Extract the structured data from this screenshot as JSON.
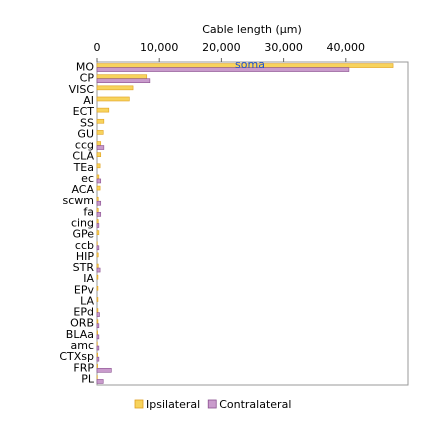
{
  "chart_data": {
    "type": "bar",
    "orientation": "horizontal",
    "title": "Cable length (µm)",
    "categories": [
      "MO",
      "CP",
      "VISC",
      "AI",
      "ECT",
      "SS",
      "GU",
      "ccg",
      "CLA",
      "TEa",
      "ec",
      "ACA",
      "scwm",
      "fa",
      "cing",
      "GPe",
      "ccb",
      "HIP",
      "STR",
      "IA",
      "EPv",
      "LA",
      "EPd",
      "ORB",
      "BLAa",
      "amc",
      "CTXsp",
      "FRP",
      "PL"
    ],
    "series": [
      {
        "name": "Ipsilateral",
        "color": "#f7d35c",
        "values": [
          47600,
          8000,
          5800,
          5200,
          1900,
          1100,
          1000,
          600,
          600,
          500,
          300,
          500,
          200,
          200,
          200,
          300,
          50,
          200,
          200,
          150,
          150,
          150,
          150,
          150,
          100,
          50,
          100,
          100,
          50
        ]
      },
      {
        "name": "Contralateral",
        "color": "#c99bcc",
        "values": [
          40500,
          8500,
          0,
          0,
          0,
          0,
          0,
          1100,
          0,
          0,
          600,
          0,
          600,
          600,
          300,
          0,
          300,
          0,
          500,
          0,
          0,
          0,
          400,
          300,
          300,
          300,
          300,
          2300,
          1000
        ]
      }
    ],
    "annotation": "soma",
    "xlim": [
      0,
      50000
    ],
    "xticks": [
      0,
      {
        "value": 10000,
        "label": "10,000"
      },
      {
        "value": 20000,
        "label": "20,000"
      },
      {
        "value": 30000,
        "label": "30,000"
      },
      {
        "value": 40000,
        "label": "40,000"
      }
    ],
    "legend": "bottom"
  }
}
